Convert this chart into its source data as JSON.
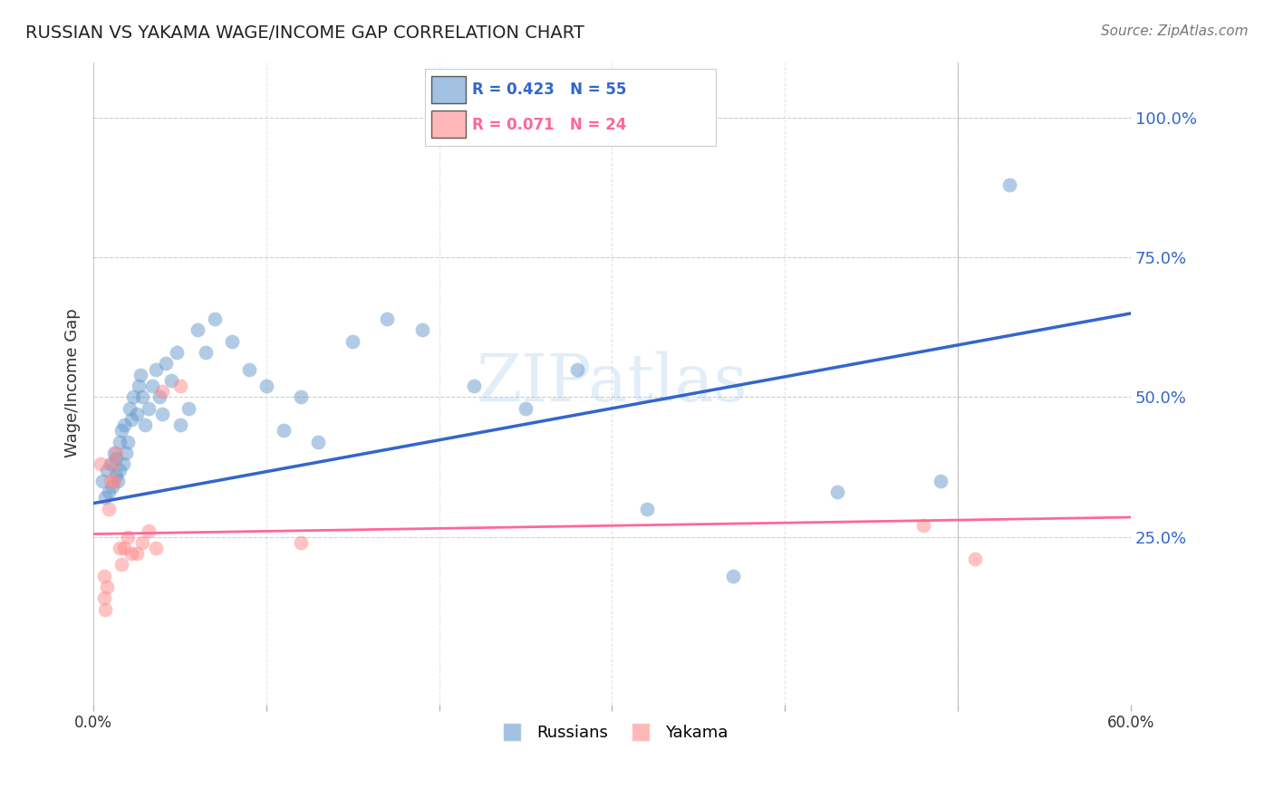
{
  "title": "RUSSIAN VS YAKAMA WAGE/INCOME GAP CORRELATION CHART",
  "source": "Source: ZipAtlas.com",
  "ylabel": "Wage/Income Gap",
  "xlim": [
    0.0,
    0.6
  ],
  "ylim": [
    -0.05,
    1.1
  ],
  "ytick_labels": [
    "25.0%",
    "50.0%",
    "75.0%",
    "100.0%"
  ],
  "ytick_values": [
    0.25,
    0.5,
    0.75,
    1.0
  ],
  "xtick_values": [
    0.0,
    0.1,
    0.2,
    0.3,
    0.4,
    0.5,
    0.6
  ],
  "legend_r_blue": "R = 0.423",
  "legend_n_blue": "N = 55",
  "legend_r_pink": "R = 0.071",
  "legend_n_pink": "N = 24",
  "blue_color": "#6699CC",
  "pink_color": "#FF8888",
  "trend_blue_color": "#3366CC",
  "trend_pink_color": "#FF6699",
  "background_color": "#FFFFFF",
  "watermark": "ZIPatlas",
  "blue_scatter_x": [
    0.005,
    0.007,
    0.008,
    0.009,
    0.01,
    0.011,
    0.012,
    0.013,
    0.013,
    0.014,
    0.015,
    0.015,
    0.016,
    0.017,
    0.018,
    0.019,
    0.02,
    0.021,
    0.022,
    0.023,
    0.025,
    0.026,
    0.027,
    0.028,
    0.03,
    0.032,
    0.034,
    0.036,
    0.038,
    0.04,
    0.042,
    0.045,
    0.048,
    0.05,
    0.055,
    0.06,
    0.065,
    0.07,
    0.08,
    0.09,
    0.1,
    0.11,
    0.12,
    0.13,
    0.15,
    0.17,
    0.19,
    0.22,
    0.25,
    0.28,
    0.32,
    0.37,
    0.43,
    0.49,
    0.53
  ],
  "blue_scatter_y": [
    0.35,
    0.32,
    0.37,
    0.33,
    0.38,
    0.34,
    0.4,
    0.36,
    0.39,
    0.35,
    0.37,
    0.42,
    0.44,
    0.38,
    0.45,
    0.4,
    0.42,
    0.48,
    0.46,
    0.5,
    0.47,
    0.52,
    0.54,
    0.5,
    0.45,
    0.48,
    0.52,
    0.55,
    0.5,
    0.47,
    0.56,
    0.53,
    0.58,
    0.45,
    0.48,
    0.62,
    0.58,
    0.64,
    0.6,
    0.55,
    0.52,
    0.44,
    0.5,
    0.42,
    0.6,
    0.64,
    0.62,
    0.52,
    0.48,
    0.55,
    0.3,
    0.18,
    0.33,
    0.35,
    0.88
  ],
  "pink_scatter_x": [
    0.004,
    0.006,
    0.006,
    0.007,
    0.008,
    0.009,
    0.01,
    0.011,
    0.012,
    0.013,
    0.015,
    0.016,
    0.018,
    0.02,
    0.022,
    0.025,
    0.028,
    0.032,
    0.036,
    0.04,
    0.05,
    0.12,
    0.48,
    0.51
  ],
  "pink_scatter_y": [
    0.38,
    0.14,
    0.18,
    0.12,
    0.16,
    0.3,
    0.35,
    0.38,
    0.35,
    0.4,
    0.23,
    0.2,
    0.23,
    0.25,
    0.22,
    0.22,
    0.24,
    0.26,
    0.23,
    0.51,
    0.52,
    0.24,
    0.27,
    0.21
  ],
  "blue_trend_x": [
    0.0,
    0.6
  ],
  "blue_trend_y": [
    0.31,
    0.65
  ],
  "pink_trend_x": [
    0.0,
    0.6
  ],
  "pink_trend_y": [
    0.255,
    0.285
  ]
}
